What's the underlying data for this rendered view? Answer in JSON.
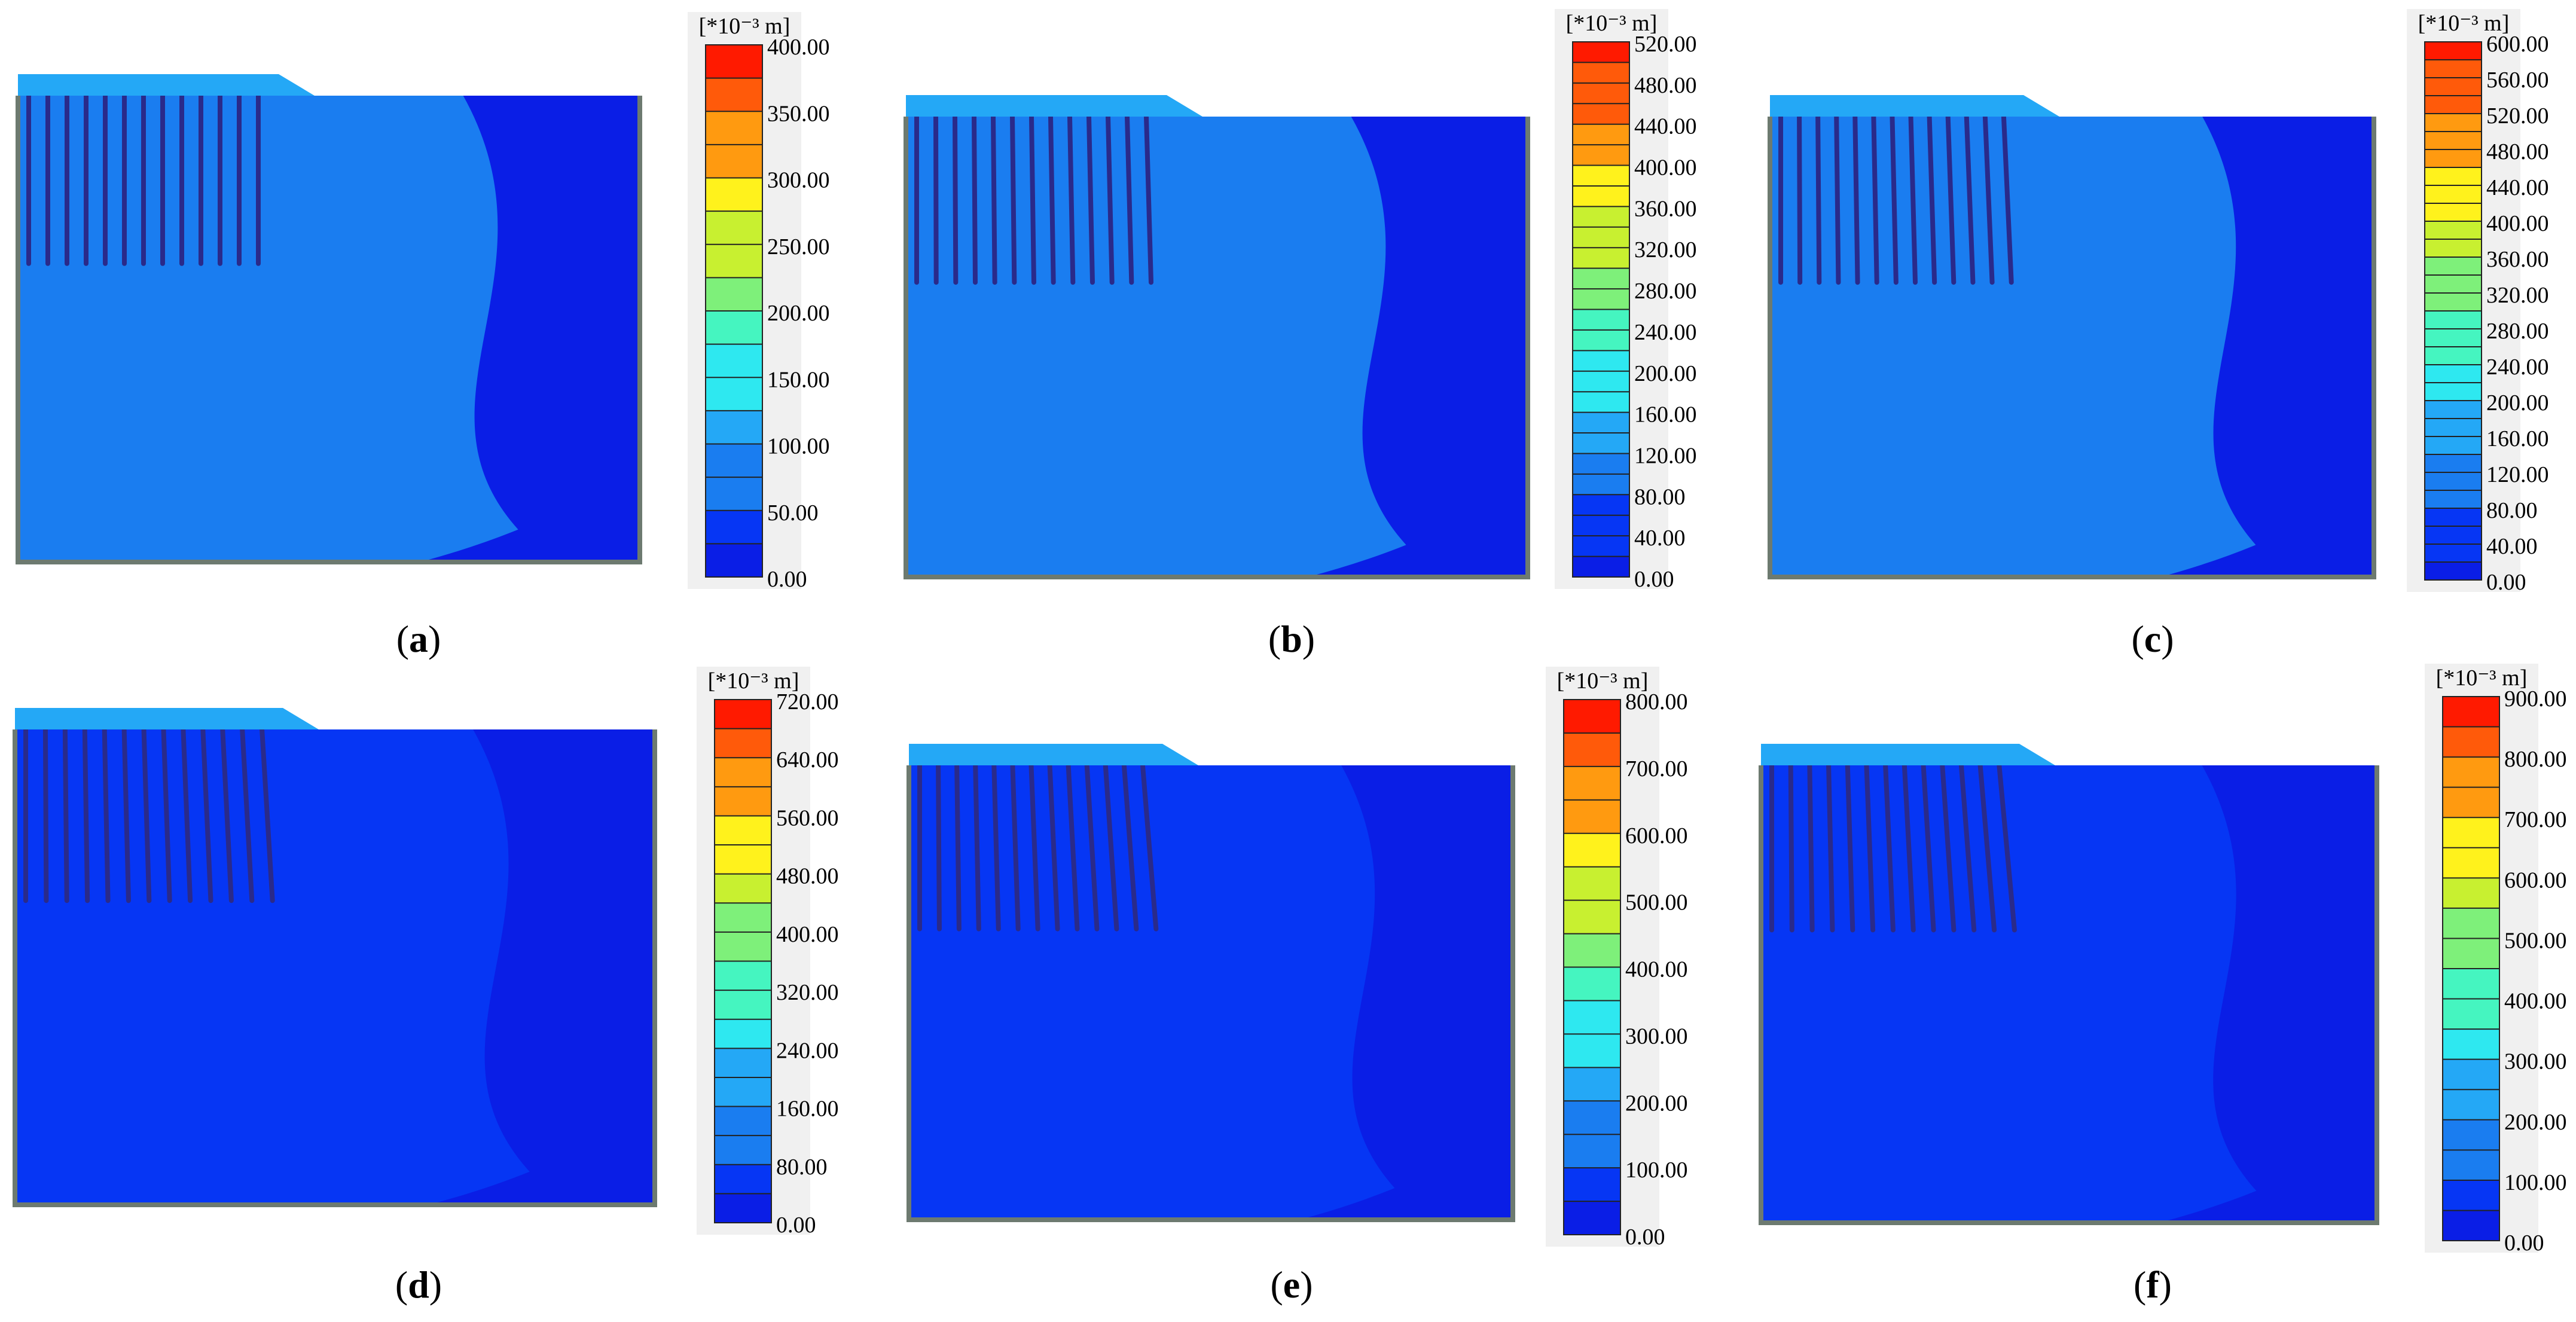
{
  "figure": {
    "unit_label": "[*10⁻³ m]",
    "colors": {
      "deep_blue": "#0a1ee6",
      "band_blue": "#0636f4",
      "mid_blue": "#1a7df0",
      "light_blue": "#24a8f6",
      "cyan": "#2ee8f0",
      "aqua_green": "#45f5c0",
      "green": "#7ef07a",
      "yellow_green": "#c8f030",
      "yellow": "#fff21c",
      "orange": "#ff9a10",
      "orange_red": "#ff5a0a",
      "red": "#ff1a00",
      "boundary": "#6d7a70",
      "pile": "#2a2a8a"
    },
    "panels": [
      {
        "id": "a",
        "caption": "(a)",
        "letter": "a",
        "left": "(",
        "right": ")",
        "ticks": [
          "400.00",
          "350.00",
          "300.00",
          "250.00",
          "200.00",
          "150.00",
          "100.00",
          "50.00",
          "0.00"
        ],
        "max_fraction": 0.86,
        "pile_tilt": 0
      },
      {
        "id": "b",
        "caption": "(b)",
        "letter": "b",
        "left": "(",
        "right": ")",
        "ticks": [
          "520.00",
          "480.00",
          "440.00",
          "400.00",
          "360.00",
          "320.00",
          "280.00",
          "240.00",
          "200.00",
          "160.00",
          "120.00",
          "80.00",
          "40.00",
          "0.00"
        ],
        "max_fraction": 0.72,
        "pile_tilt": 0.25
      },
      {
        "id": "c",
        "caption": "(c)",
        "letter": "c",
        "left": "(",
        "right": ")",
        "ticks": [
          "600.00",
          "560.00",
          "520.00",
          "480.00",
          "440.00",
          "400.00",
          "360.00",
          "320.00",
          "280.00",
          "240.00",
          "200.00",
          "160.00",
          "120.00",
          "80.00",
          "40.00",
          "0.00"
        ],
        "max_fraction": 0.64,
        "pile_tilt": 0.4
      },
      {
        "id": "d",
        "caption": "(d)",
        "letter": "d",
        "left": "(",
        "right": ")",
        "ticks": [
          "720.00",
          "640.00",
          "560.00",
          "480.00",
          "400.00",
          "320.00",
          "240.00",
          "160.00",
          "80.00",
          "0.00"
        ],
        "max_fraction": 0.5,
        "pile_tilt": 0.55
      },
      {
        "id": "e",
        "caption": "(e)",
        "letter": "e",
        "left": "(",
        "right": ")",
        "ticks": [
          "800.00",
          "700.00",
          "600.00",
          "500.00",
          "400.00",
          "300.00",
          "200.00",
          "100.00",
          "0.00"
        ],
        "max_fraction": 0.42,
        "pile_tilt": 0.7
      },
      {
        "id": "f",
        "caption": "(f)",
        "letter": "f",
        "left": "(",
        "right": ")",
        "ticks": [
          "900.00",
          "800.00",
          "700.00",
          "600.00",
          "500.00",
          "400.00",
          "300.00",
          "200.00",
          "100.00",
          "0.00"
        ],
        "max_fraction": 0.38,
        "pile_tilt": 0.8
      }
    ]
  }
}
